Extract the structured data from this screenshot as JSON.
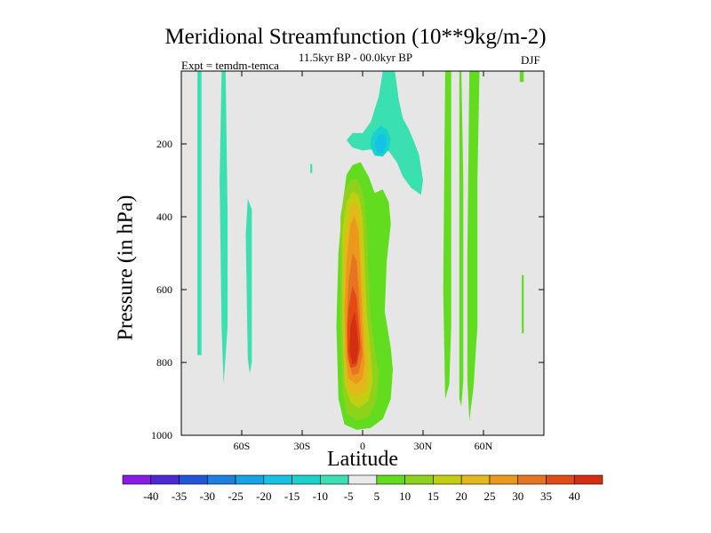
{
  "chart_data": {
    "type": "contour",
    "title": "Meridional Streamfunction (10**9kg/m-2)",
    "subtitle": "11.5kyr BP - 00.0kyr BP",
    "experiment": "Expt = temdm-temca",
    "season": "DJF",
    "xlabel": "Latitude",
    "ylabel": "Pressure (in hPa)",
    "xlim": [
      -90,
      90
    ],
    "ylim": [
      1000,
      0
    ],
    "x_ticks": [
      {
        "value": -60,
        "label": "60S"
      },
      {
        "value": -30,
        "label": "30S"
      },
      {
        "value": 0,
        "label": "0"
      },
      {
        "value": 30,
        "label": "30N"
      },
      {
        "value": 60,
        "label": "60N"
      }
    ],
    "y_ticks": [
      {
        "value": 200,
        "label": "200"
      },
      {
        "value": 400,
        "label": "400"
      },
      {
        "value": 600,
        "label": "600"
      },
      {
        "value": 800,
        "label": "800"
      },
      {
        "value": 1000,
        "label": "1000"
      }
    ],
    "background_color": "#e6e6e6",
    "colorbar": {
      "labels": [
        "-40",
        "-35",
        "-30",
        "-25",
        "-20",
        "-15",
        "-10",
        "-5",
        "5",
        "10",
        "15",
        "20",
        "25",
        "30",
        "35",
        "40"
      ],
      "colors": [
        "#8a1ae8",
        "#4b2ad6",
        "#2255d8",
        "#1e7fe0",
        "#15a4e6",
        "#16c2e4",
        "#18d3cc",
        "#3be0b0",
        "#eaeaea",
        "#62dc1e",
        "#8ed21c",
        "#c2cf10",
        "#e2b81a",
        "#ec981d",
        "#e67420",
        "#e24a16",
        "#d42e12"
      ]
    },
    "contours": [
      {
        "level": -5,
        "color": "#3be0b0",
        "points": [
          [
            -82,
            0
          ],
          [
            -80,
            0
          ],
          [
            -80,
            780
          ],
          [
            -82,
            780
          ]
        ]
      },
      {
        "level": -5,
        "color": "#3be0b0",
        "points": [
          [
            -70,
            0
          ],
          [
            -68,
            0
          ],
          [
            -67,
            400
          ],
          [
            -67,
            700
          ],
          [
            -69,
            860
          ],
          [
            -70,
            700
          ],
          [
            -71,
            300
          ]
        ]
      },
      {
        "level": -5,
        "color": "#3be0b0",
        "points": [
          [
            -57,
            350
          ],
          [
            -55,
            380
          ],
          [
            -55,
            800
          ],
          [
            -56,
            830
          ],
          [
            -57,
            790
          ],
          [
            -58,
            450
          ]
        ]
      },
      {
        "level": -5,
        "color": "#3be0b0",
        "points": [
          [
            -26,
            255
          ],
          [
            -25,
            255
          ],
          [
            -25,
            280
          ],
          [
            -26,
            280
          ]
        ]
      },
      {
        "level": -5,
        "color": "#3be0b0",
        "points": [
          [
            -8,
            190
          ],
          [
            -5,
            170
          ],
          [
            0,
            170
          ],
          [
            4,
            140
          ],
          [
            8,
            70
          ],
          [
            10,
            0
          ],
          [
            16,
            0
          ],
          [
            18,
            80
          ],
          [
            20,
            130
          ],
          [
            23,
            160
          ],
          [
            26,
            200
          ],
          [
            28,
            230
          ],
          [
            30,
            300
          ],
          [
            29,
            340
          ],
          [
            24,
            320
          ],
          [
            20,
            290
          ],
          [
            17,
            250
          ],
          [
            13,
            220
          ],
          [
            9,
            215
          ],
          [
            4,
            215
          ],
          [
            0,
            218
          ],
          [
            -5,
            210
          ]
        ]
      },
      {
        "level": -10,
        "color": "#18d3cc",
        "points": [
          [
            4,
            185
          ],
          [
            6,
            165
          ],
          [
            9,
            150
          ],
          [
            12,
            160
          ],
          [
            14,
            185
          ],
          [
            13,
            215
          ],
          [
            10,
            235
          ],
          [
            6,
            232
          ],
          [
            4,
            210
          ]
        ]
      },
      {
        "level": -15,
        "color": "#16c2e4",
        "points": [
          [
            6,
            200
          ],
          [
            8,
            175
          ],
          [
            11,
            172
          ],
          [
            12,
            200
          ],
          [
            10,
            225
          ],
          [
            7,
            225
          ]
        ]
      },
      {
        "level": 5,
        "color": "#62dc1e",
        "points": [
          [
            -10,
            370
          ],
          [
            -8,
            285
          ],
          [
            -5,
            258
          ],
          [
            -1,
            250
          ],
          [
            3,
            290
          ],
          [
            6,
            335
          ],
          [
            10,
            325
          ],
          [
            13,
            360
          ],
          [
            14,
            420
          ],
          [
            12,
            520
          ],
          [
            11,
            660
          ],
          [
            14,
            760
          ],
          [
            15,
            820
          ],
          [
            14,
            900
          ],
          [
            10,
            955
          ],
          [
            4,
            980
          ],
          [
            -3,
            985
          ],
          [
            -9,
            970
          ],
          [
            -12,
            900
          ],
          [
            -13,
            700
          ],
          [
            -12,
            500
          ]
        ]
      },
      {
        "level": 5,
        "color": "#62dc1e",
        "points": [
          [
            41,
            0
          ],
          [
            44,
            0
          ],
          [
            44,
            700
          ],
          [
            43,
            860
          ],
          [
            41,
            900
          ],
          [
            40,
            600
          ]
        ]
      },
      {
        "level": 5,
        "color": "#62dc1e",
        "points": [
          [
            48,
            0
          ],
          [
            49,
            0
          ],
          [
            50,
            300
          ],
          [
            50,
            850
          ],
          [
            49,
            920
          ],
          [
            48,
            900
          ],
          [
            48,
            600
          ]
        ]
      },
      {
        "level": 5,
        "color": "#62dc1e",
        "points": [
          [
            53,
            0
          ],
          [
            58,
            0
          ],
          [
            57,
            300
          ],
          [
            57,
            700
          ],
          [
            55,
            870
          ],
          [
            53,
            960
          ],
          [
            52,
            850
          ],
          [
            52,
            500
          ]
        ]
      },
      {
        "level": 5,
        "color": "#62dc1e",
        "points": [
          [
            78,
            0
          ],
          [
            80,
            0
          ],
          [
            80,
            30
          ],
          [
            78,
            30
          ]
        ]
      },
      {
        "level": 5,
        "color": "#62dc1e",
        "points": [
          [
            79,
            560
          ],
          [
            80,
            560
          ],
          [
            80,
            720
          ],
          [
            79,
            720
          ]
        ]
      },
      {
        "level": 10,
        "color": "#8ed21c",
        "points": [
          [
            -11,
            400
          ],
          [
            -9,
            330
          ],
          [
            -6,
            300
          ],
          [
            -3,
            295
          ],
          [
            0,
            330
          ],
          [
            2,
            420
          ],
          [
            3,
            560
          ],
          [
            4,
            680
          ],
          [
            6,
            760
          ],
          [
            8,
            830
          ],
          [
            7,
            900
          ],
          [
            3,
            950
          ],
          [
            -3,
            960
          ],
          [
            -8,
            940
          ],
          [
            -10,
            880
          ],
          [
            -11,
            700
          ],
          [
            -11,
            520
          ]
        ]
      },
      {
        "level": 15,
        "color": "#c2cf10",
        "points": [
          [
            -10,
            440
          ],
          [
            -8,
            360
          ],
          [
            -5,
            330
          ],
          [
            -2,
            340
          ],
          [
            0,
            400
          ],
          [
            1,
            520
          ],
          [
            2,
            660
          ],
          [
            4,
            780
          ],
          [
            5,
            850
          ],
          [
            3,
            905
          ],
          [
            -2,
            925
          ],
          [
            -6,
            910
          ],
          [
            -9,
            860
          ],
          [
            -10,
            700
          ],
          [
            -10,
            550
          ]
        ]
      },
      {
        "level": 20,
        "color": "#e2b81a",
        "points": [
          [
            -9,
            470
          ],
          [
            -6,
            380
          ],
          [
            -4,
            355
          ],
          [
            -2,
            380
          ],
          [
            -1,
            460
          ],
          [
            0,
            580
          ],
          [
            1,
            700
          ],
          [
            3,
            820
          ],
          [
            2,
            875
          ],
          [
            -3,
            895
          ],
          [
            -7,
            880
          ],
          [
            -9,
            820
          ],
          [
            -9.5,
            700
          ],
          [
            -9.5,
            580
          ]
        ]
      },
      {
        "level": 25,
        "color": "#ec981d",
        "points": [
          [
            -8,
            520
          ],
          [
            -6,
            420
          ],
          [
            -4,
            400
          ],
          [
            -2,
            440
          ],
          [
            -1,
            560
          ],
          [
            0,
            690
          ],
          [
            1,
            800
          ],
          [
            0,
            845
          ],
          [
            -3,
            860
          ],
          [
            -7,
            845
          ],
          [
            -8.5,
            780
          ],
          [
            -9,
            660
          ]
        ]
      },
      {
        "level": 30,
        "color": "#e67420",
        "points": [
          [
            -7,
            580
          ],
          [
            -5,
            500
          ],
          [
            -3,
            520
          ],
          [
            -2,
            600
          ],
          [
            -1,
            700
          ],
          [
            0,
            780
          ],
          [
            -2,
            830
          ],
          [
            -5,
            835
          ],
          [
            -7.5,
            790
          ],
          [
            -8,
            700
          ]
        ]
      },
      {
        "level": 35,
        "color": "#e24a16",
        "points": [
          [
            -7,
            650
          ],
          [
            -5,
            590
          ],
          [
            -3,
            620
          ],
          [
            -2,
            690
          ],
          [
            -1,
            760
          ],
          [
            -3,
            810
          ],
          [
            -6,
            815
          ],
          [
            -7.5,
            770
          ],
          [
            -7.5,
            700
          ]
        ]
      },
      {
        "level": 40,
        "color": "#d42e12",
        "points": [
          [
            -6,
            700
          ],
          [
            -4,
            660
          ],
          [
            -3,
            700
          ],
          [
            -2,
            760
          ],
          [
            -3,
            800
          ],
          [
            -5,
            805
          ],
          [
            -6.5,
            770
          ]
        ]
      }
    ]
  }
}
